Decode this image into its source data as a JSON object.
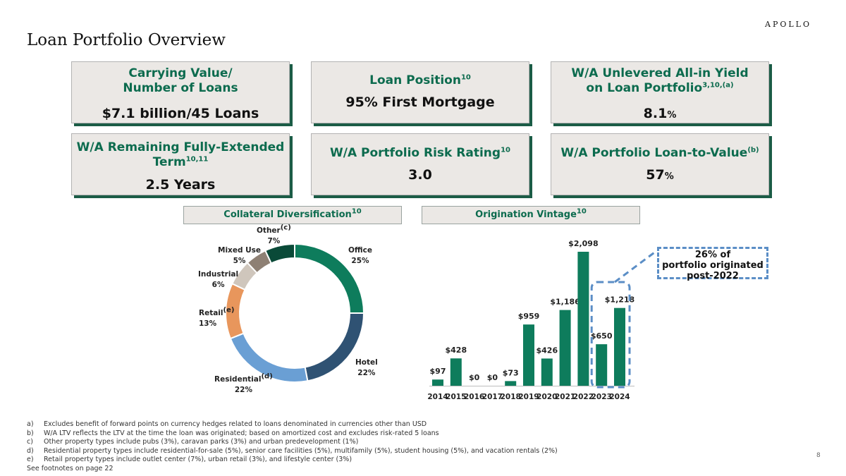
{
  "brand": {
    "logo_text": "APOLLO"
  },
  "page_title": "Loan Portfolio Overview",
  "page_number": "8",
  "cards": [
    {
      "title_line1": "Carrying Value/",
      "title_line2": "Number of Loans",
      "sup": "",
      "value": "$7.1 billion/45 Loans",
      "value_suffix": ""
    },
    {
      "title_line1": "Loan Position",
      "sup": "10",
      "value": "95% First Mortgage",
      "value_suffix": ""
    },
    {
      "title_line1": "W/A Unlevered All-in Yield",
      "title_line2": "on Loan Portfolio",
      "sup": "3,10,(a)",
      "value": "8.1",
      "value_suffix": "%"
    },
    {
      "title_line1": "W/A Remaining Fully-Extended",
      "title_line2": "Term",
      "sup": "10,11",
      "value": "2.5 Years",
      "value_suffix": ""
    },
    {
      "title_line1": "W/A Portfolio Risk Rating",
      "sup": "10",
      "value": "3.0",
      "value_suffix": ""
    },
    {
      "title_line1": "W/A Portfolio Loan-to-Value",
      "sup": "(b)",
      "value": "57",
      "value_suffix": "%"
    }
  ],
  "sections": {
    "collateral_title": "Collateral Diversification",
    "collateral_sup": "10",
    "vintage_title": "Origination Vintage",
    "vintage_sup": "10"
  },
  "callout": {
    "line1": "26% of",
    "line2": "portfolio originated",
    "line3": "post-2022"
  },
  "chart_data": [
    {
      "type": "pie",
      "variant": "donut",
      "title": "Collateral Diversification",
      "slices": [
        {
          "label": "Office",
          "sup": "",
          "value": 25,
          "display": "25%",
          "color": "#0e7c5c"
        },
        {
          "label": "Hotel",
          "sup": "",
          "value": 22,
          "display": "22%",
          "color": "#2f5273"
        },
        {
          "label": "Residential",
          "sup": "(d)",
          "value": 22,
          "display": "22%",
          "color": "#6a9fd4"
        },
        {
          "label": "Retail",
          "sup": "(e)",
          "value": 13,
          "display": "13%",
          "color": "#e8965c"
        },
        {
          "label": "Industrial",
          "sup": "",
          "value": 6,
          "display": "6%",
          "color": "#cfc6bc"
        },
        {
          "label": "Mixed Use",
          "sup": "",
          "value": 5,
          "display": "5%",
          "color": "#8e8074"
        },
        {
          "label": "Other",
          "sup": "(c)",
          "value": 7,
          "display": "7%",
          "color": "#0a4a38"
        }
      ]
    },
    {
      "type": "bar",
      "title": "Origination Vintage",
      "categories": [
        "2014",
        "2015",
        "2016",
        "2017",
        "2018",
        "2019",
        "2020",
        "2021",
        "2022",
        "2023",
        "2024"
      ],
      "values": [
        97,
        428,
        0,
        0,
        73,
        959,
        426,
        1186,
        2098,
        650,
        1218
      ],
      "labels": [
        "$97",
        "$428",
        "$0",
        "$0",
        "$73",
        "$959",
        "$426",
        "$1,186",
        "$2,098",
        "$650",
        "$1,218"
      ],
      "color": "#0e7c5c",
      "ylim": [
        0,
        2098
      ]
    }
  ],
  "footnotes": [
    {
      "marker": "a)",
      "text": "Excludes benefit of forward points on currency hedges related to loans denominated in currencies other than USD"
    },
    {
      "marker": "b)",
      "text": "W/A LTV reflects the LTV at the time the loan was originated; based on amortized cost and excludes risk-rated 5 loans"
    },
    {
      "marker": "c)",
      "text": "Other property types include pubs (3%), caravan parks (3%) and urban predevelopment (1%)"
    },
    {
      "marker": "d)",
      "text": "Residential property types include residential-for-sale (5%), senior care facilities (5%), multifamily (5%), student housing (5%), and vacation rentals (2%)"
    },
    {
      "marker": "e)",
      "text": "Retail property types include outlet center (7%), urban retail (3%), and lifestyle center (3%)"
    }
  ],
  "see_footnotes": "See footnotes on page 22"
}
